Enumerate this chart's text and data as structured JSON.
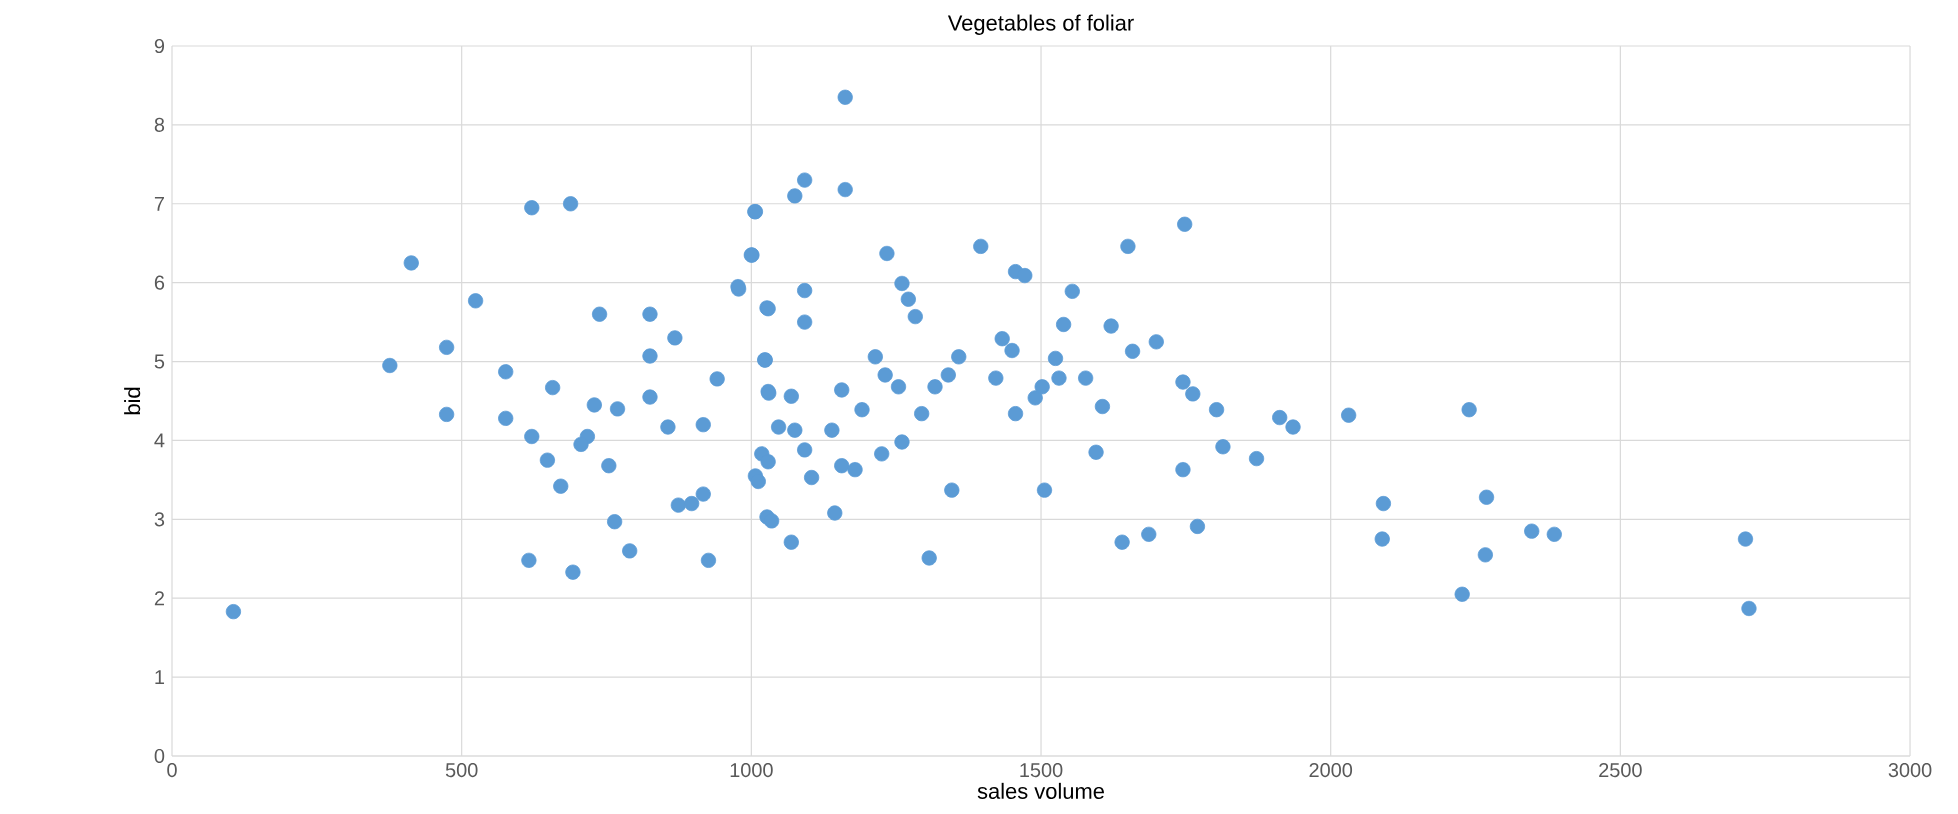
{
  "chart_data": {
    "type": "scatter",
    "title": "Vegetables of foliar",
    "xlabel": "sales volume",
    "ylabel": "bid",
    "xlim": [
      0,
      3000
    ],
    "ylim": [
      0,
      9
    ],
    "xticks": [
      0,
      500,
      1000,
      1500,
      2000,
      2500,
      3000
    ],
    "yticks": [
      0,
      1,
      2,
      3,
      4,
      5,
      6,
      7,
      8,
      9
    ],
    "grid": true,
    "marker": "circle",
    "series": [
      {
        "color": "#5b9bd5",
        "x": [
          106,
          376,
          413,
          474,
          474,
          524,
          576,
          576,
          621,
          688,
          621,
          657,
          648,
          671,
          616,
          692,
          738,
          729,
          769,
          717,
          706,
          754,
          764,
          790,
          825,
          825,
          868,
          825,
          856,
          917,
          941,
          874,
          897,
          917,
          926,
          1007,
          1001,
          978,
          1027,
          1024,
          1030,
          1047,
          1018,
          1007,
          1027,
          1162,
          1092,
          1075,
          1162,
          1006,
          1000,
          977,
          1029,
          1092,
          1092,
          1234,
          1260,
          1271,
          1283,
          1396,
          1456,
          1472,
          1554,
          1539,
          1650,
          1748,
          1621,
          1658,
          1699,
          1023,
          1029,
          1069,
          1214,
          1156,
          1191,
          1231,
          1254,
          1294,
          1317,
          1358,
          1340,
          1433,
          1450,
          1422,
          1456,
          1490,
          1525,
          1531,
          1577,
          1606,
          1502,
          1745,
          1762,
          1803,
          1912,
          1935,
          2031,
          1814,
          1872,
          1745,
          1595,
          1075,
          1029,
          1012,
          1092,
          1104,
          1139,
          1156,
          1179,
          1225,
          1260,
          1035,
          1069,
          1144,
          1346,
          1506,
          1307,
          1640,
          1686,
          1770,
          2239,
          2091,
          2089,
          2269,
          2267,
          2227,
          2347,
          2386,
          2716,
          2722
        ],
        "values": [
          1.83,
          4.95,
          6.25,
          5.18,
          4.33,
          5.77,
          4.87,
          4.28,
          6.95,
          7.0,
          4.05,
          4.67,
          3.75,
          3.42,
          2.48,
          2.33,
          5.6,
          4.45,
          4.4,
          4.05,
          3.95,
          3.68,
          2.97,
          2.6,
          5.6,
          5.07,
          5.3,
          4.55,
          4.17,
          4.2,
          4.78,
          3.18,
          3.2,
          3.32,
          2.48,
          6.9,
          6.35,
          5.92,
          5.68,
          5.02,
          4.6,
          4.17,
          3.83,
          3.55,
          3.03,
          8.35,
          7.3,
          7.1,
          7.18,
          6.9,
          6.35,
          5.95,
          5.67,
          5.9,
          5.5,
          6.37,
          5.99,
          5.79,
          5.57,
          6.46,
          6.14,
          6.09,
          5.89,
          5.47,
          6.46,
          6.74,
          5.45,
          5.13,
          5.25,
          5.02,
          4.62,
          4.56,
          5.06,
          4.64,
          4.39,
          4.83,
          4.68,
          4.34,
          4.68,
          5.06,
          4.83,
          5.29,
          5.14,
          4.79,
          4.34,
          4.54,
          5.04,
          4.79,
          4.79,
          4.43,
          4.68,
          4.74,
          4.59,
          4.39,
          4.29,
          4.17,
          4.32,
          3.92,
          3.77,
          3.63,
          3.85,
          4.13,
          3.73,
          3.48,
          3.88,
          3.53,
          4.13,
          3.68,
          3.63,
          3.83,
          3.98,
          2.98,
          2.71,
          3.08,
          3.37,
          3.37,
          2.51,
          2.71,
          2.81,
          2.91,
          4.39,
          3.2,
          2.75,
          3.28,
          2.55,
          2.05,
          2.85,
          2.81,
          2.75,
          1.87
        ]
      }
    ]
  }
}
